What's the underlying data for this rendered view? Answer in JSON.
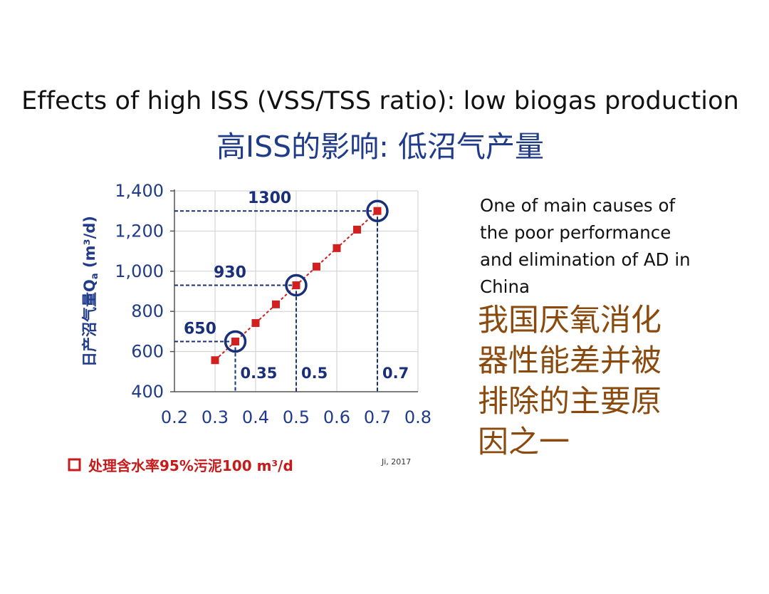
{
  "slide": {
    "title_en": "Effects of high ISS (VSS/TSS ratio): low biogas production",
    "title_cn": "高ISS的影响: 低沼气产量",
    "description_en": "One of main causes of the poor performance and elimination of AD in China",
    "description_cn": "我国厌氧消化器性能差并被排除的主要原因之一",
    "citation": "Ji, 2017"
  },
  "colors": {
    "title_cn": "#1f3b8a",
    "description_cn": "#8a4a0e",
    "series": "#d21f1f",
    "axis_text": "#1f3b8a",
    "highlight": "#1a2f7a"
  },
  "chart_data": {
    "type": "line",
    "xlabel": "",
    "ylabel": "日产沼气量Qa (m³/d)",
    "ylabel_main": "日产沼气量Q",
    "ylabel_sub": "a",
    "ylabel_unit": " (m³/d)",
    "xlim": [
      0.2,
      0.8
    ],
    "ylim": [
      400,
      1400
    ],
    "x_ticks": [
      0.2,
      0.3,
      0.4,
      0.5,
      0.6,
      0.7,
      0.8
    ],
    "x_tick_labels": [
      "0.2",
      "0.3",
      "0.4",
      "0.5",
      "0.6",
      "0.7",
      "0.8"
    ],
    "y_ticks": [
      400,
      600,
      800,
      1000,
      1200,
      1400
    ],
    "y_tick_labels": [
      "400",
      "600",
      "800",
      "1,000",
      "1,200",
      "1,400"
    ],
    "grid": true,
    "series": [
      {
        "name": "处理含水率95%污泥100 m³/d",
        "x": [
          0.3,
          0.35,
          0.4,
          0.45,
          0.5,
          0.55,
          0.6,
          0.65,
          0.7
        ],
        "y": [
          557,
          650,
          742,
          835,
          930,
          1023,
          1115,
          1207,
          1300
        ]
      }
    ],
    "legend": {
      "position": "bottom-left",
      "marker": "□",
      "text": "处理含水率95%污泥100 m³/d"
    },
    "annotations": [
      {
        "x": 0.35,
        "y": 650,
        "x_label": "0.35",
        "y_label": "650"
      },
      {
        "x": 0.5,
        "y": 930,
        "x_label": "0.5",
        "y_label": "930"
      },
      {
        "x": 0.7,
        "y": 1300,
        "x_label": "0.7",
        "y_label": "1300"
      }
    ]
  }
}
